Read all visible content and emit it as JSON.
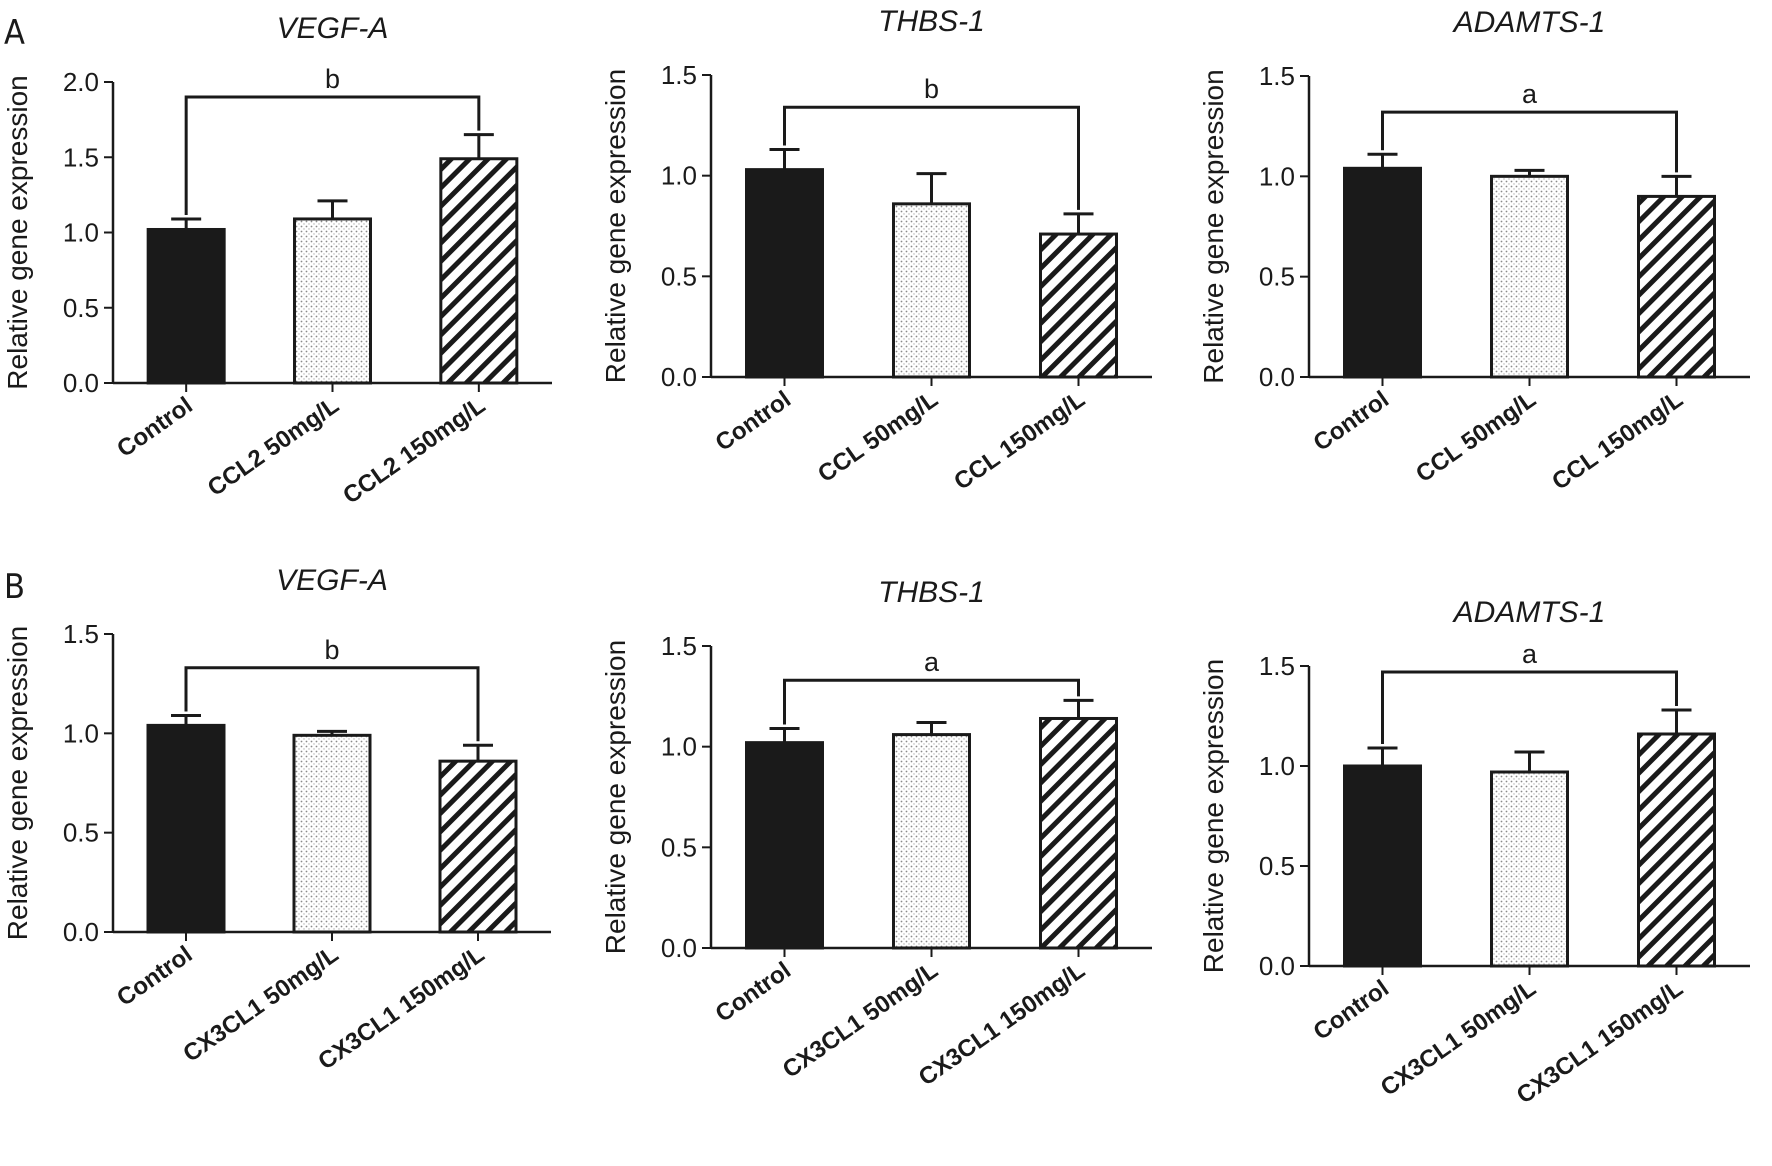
{
  "figure": {
    "panels": [
      {
        "letter": "A"
      },
      {
        "letter": "B"
      }
    ]
  },
  "styles": {
    "bar_colors": {
      "control": "#1a1a1a",
      "stroke": "#1a1a1a",
      "dotted_fill": "#e8e8e8",
      "hatch": "#1a1a1a",
      "background": "#ffffff"
    }
  },
  "chart_data": [
    {
      "type": "bar",
      "panel": "A",
      "title": "VEGF-A",
      "ylabel": "Relative gene expression",
      "ylim": [
        0,
        2.0
      ],
      "yticks": [
        "0.0",
        "0.5",
        "1.0",
        "1.5",
        "2.0"
      ],
      "categories": [
        "Control",
        "CCL2 50mg/L",
        "CCL2 150mg/L"
      ],
      "values": [
        1.02,
        1.09,
        1.49
      ],
      "errors": [
        0.07,
        0.12,
        0.16
      ],
      "fills": [
        "solid",
        "dotted",
        "hatched"
      ],
      "significance": {
        "label": "b",
        "between": [
          0,
          2
        ],
        "level": 1.9
      }
    },
    {
      "type": "bar",
      "panel": "A",
      "title": "THBS-1",
      "ylabel": "Relative gene expression",
      "ylim": [
        0,
        1.5
      ],
      "yticks": [
        "0.0",
        "0.5",
        "1.0",
        "1.5"
      ],
      "categories": [
        "Control",
        "CCL 50mg/L",
        "CCL 150mg/L"
      ],
      "values": [
        1.03,
        0.86,
        0.71
      ],
      "errors": [
        0.1,
        0.15,
        0.1
      ],
      "fills": [
        "solid",
        "dotted",
        "hatched"
      ],
      "significance": {
        "label": "b",
        "between": [
          0,
          2
        ],
        "level": 1.34
      }
    },
    {
      "type": "bar",
      "panel": "A",
      "title": "ADAMTS-1",
      "ylabel": "Relative gene expression",
      "ylim": [
        0,
        1.5
      ],
      "yticks": [
        "0.0",
        "0.5",
        "1.0",
        "1.5"
      ],
      "categories": [
        "Control",
        "CCL 50mg/L",
        "CCL 150mg/L"
      ],
      "values": [
        1.04,
        1.0,
        0.9
      ],
      "errors": [
        0.07,
        0.03,
        0.1
      ],
      "fills": [
        "solid",
        "dotted",
        "hatched"
      ],
      "significance": {
        "label": "a",
        "between": [
          0,
          2
        ],
        "level": 1.32
      }
    },
    {
      "type": "bar",
      "panel": "B",
      "title": "VEGF-A",
      "ylabel": "Relative gene expression",
      "ylim": [
        0,
        1.5
      ],
      "yticks": [
        "0.0",
        "0.5",
        "1.0",
        "1.5"
      ],
      "categories": [
        "Control",
        "CX3CL1 50mg/L",
        "CX3CL1 150mg/L"
      ],
      "values": [
        1.04,
        0.99,
        0.86
      ],
      "errors": [
        0.05,
        0.02,
        0.08
      ],
      "fills": [
        "solid",
        "dotted",
        "hatched"
      ],
      "significance": {
        "label": "b",
        "between": [
          0,
          2
        ],
        "level": 1.33
      }
    },
    {
      "type": "bar",
      "panel": "B",
      "title": "THBS-1",
      "ylabel": "Relative gene expression",
      "ylim": [
        0,
        1.5
      ],
      "yticks": [
        "0.0",
        "0.5",
        "1.0",
        "1.5"
      ],
      "categories": [
        "Control",
        "CX3CL1 50mg/L",
        "CX3CL1 150mg/L"
      ],
      "values": [
        1.02,
        1.06,
        1.14
      ],
      "errors": [
        0.07,
        0.06,
        0.09
      ],
      "fills": [
        "solid",
        "dotted",
        "hatched"
      ],
      "significance": {
        "label": "a",
        "between": [
          0,
          2
        ],
        "level": 1.33
      }
    },
    {
      "type": "bar",
      "panel": "B",
      "title": "ADAMTS-1",
      "ylabel": "Relative gene expression",
      "ylim": [
        0,
        1.5
      ],
      "yticks": [
        "0.0",
        "0.5",
        "1.0",
        "1.5"
      ],
      "categories": [
        "Control",
        "CX3CL1 50mg/L",
        "CX3CL1 150mg/L"
      ],
      "values": [
        1.0,
        0.97,
        1.16
      ],
      "errors": [
        0.09,
        0.1,
        0.12
      ],
      "fills": [
        "solid",
        "dotted",
        "hatched"
      ],
      "significance": {
        "label": "a",
        "between": [
          0,
          2
        ],
        "level": 1.47
      }
    }
  ]
}
